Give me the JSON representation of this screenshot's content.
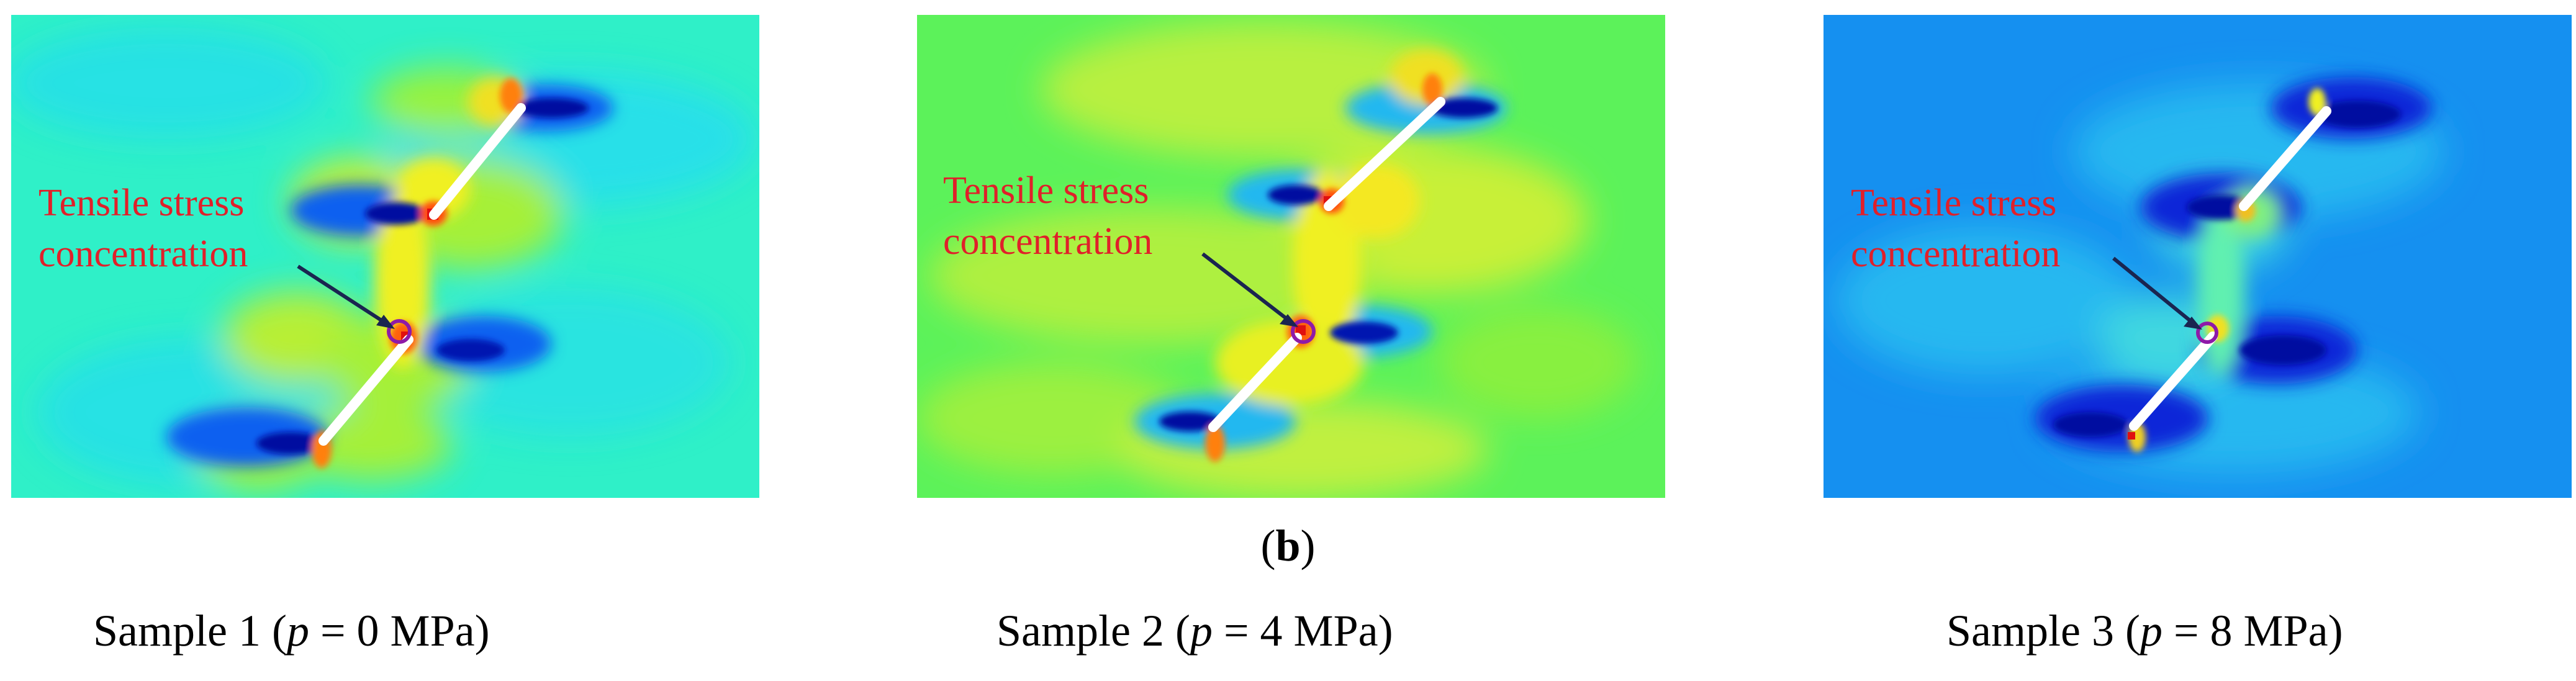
{
  "panels": [
    {
      "annotation_line1": "Tensile stress",
      "annotation_line2": "concentration",
      "sample_label": "Sample 1",
      "pressure_symbol": "p",
      "pressure_value": "= 0 MPa"
    },
    {
      "annotation_line1": "Tensile stress",
      "annotation_line2": "concentration",
      "sample_label": "Sample 2",
      "pressure_symbol": "p",
      "pressure_value": "= 4 MPa"
    },
    {
      "annotation_line1": "Tensile stress",
      "annotation_line2": "concentration",
      "sample_label": "Sample 3",
      "pressure_symbol": "p",
      "pressure_value": "= 8 MPa"
    }
  ],
  "figure_label": "b",
  "colors": {
    "annotation_text": "#e0202a",
    "arrow": "#1a2550",
    "crack": "#ffffff",
    "panel1_background": "#2ff0c8",
    "panel2_background": "#5cf25a",
    "panel3_background": "#1590f0"
  }
}
